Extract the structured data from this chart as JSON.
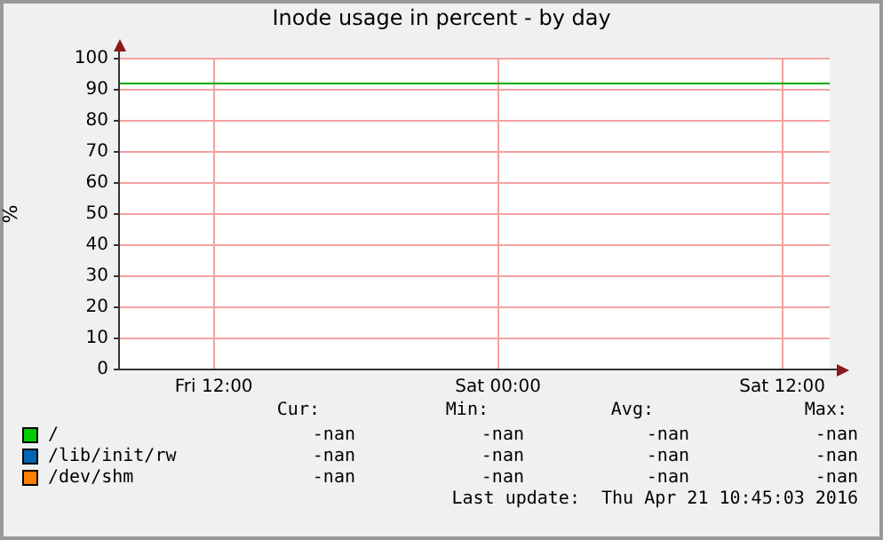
{
  "chart_data": {
    "type": "line",
    "title": "Inode usage in percent - by day",
    "ylabel": "%",
    "categories": [
      null,
      null,
      null,
      null,
      "Fri 12:00",
      null,
      null,
      null,
      null,
      null,
      null,
      null,
      null,
      null,
      null,
      null,
      "Sat 00:00",
      null,
      null,
      null,
      null,
      null,
      null,
      null,
      null,
      null,
      null,
      null,
      "Sat 12:00",
      null,
      null
    ],
    "ylim": [
      0,
      100
    ],
    "yticks": [
      0,
      10,
      20,
      30,
      40,
      50,
      60,
      70,
      80,
      90,
      100
    ],
    "grid": true,
    "legend": "bottom",
    "series": [
      {
        "name": "/",
        "color": "#00cc00",
        "values": [
          null,
          null,
          null,
          null,
          null,
          null,
          null,
          null,
          null,
          null,
          null,
          null,
          null,
          null,
          null,
          null,
          null,
          null,
          null,
          null,
          null,
          null,
          null,
          null,
          null,
          null,
          null,
          null,
          null,
          null,
          null
        ]
      },
      {
        "name": "/lib/init/rw",
        "color": "#0066b3",
        "values": [
          null,
          null,
          null,
          null,
          null,
          null,
          null,
          null,
          null,
          null,
          null,
          null,
          null,
          null,
          null,
          null,
          null,
          null,
          null,
          null,
          null,
          null,
          null,
          null,
          null,
          null,
          null,
          null,
          null,
          null,
          null
        ]
      },
      {
        "name": "/dev/shm",
        "color": "#ff8000",
        "values": [
          null,
          null,
          null,
          null,
          null,
          null,
          null,
          null,
          null,
          null,
          null,
          null,
          null,
          null,
          null,
          null,
          null,
          null,
          null,
          null,
          null,
          null,
          null,
          null,
          null,
          null,
          null,
          null,
          null,
          null,
          null
        ]
      }
    ],
    "ref_lines": [
      {
        "axis": "y",
        "value": 92,
        "color": "#00aa00"
      }
    ],
    "annotations": [
      "Cur:",
      "Min:",
      "Avg:",
      "Max:",
      "-nan",
      "-nan",
      "-nan",
      "-nan",
      "-nan",
      "-nan",
      "-nan",
      "-nan",
      "-nan",
      "-nan",
      "-nan",
      "-nan",
      "Last update:  Thu Apr 21 10:45:03 2016"
    ]
  }
}
